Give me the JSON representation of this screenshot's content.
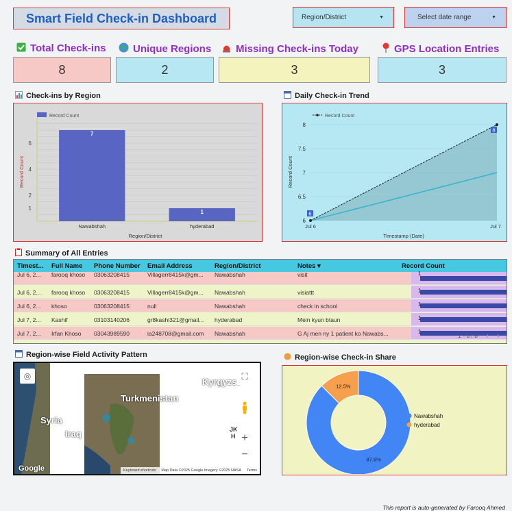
{
  "header": {
    "title": "Smart Field Check-in Dashboard",
    "region_filter": "Region/District",
    "date_filter": "Select date range"
  },
  "kpis": [
    {
      "label": "Total Check-ins",
      "icon": "checkbox-icon",
      "value": "8",
      "color": "#f6c8c6"
    },
    {
      "label": "Unique Regions",
      "icon": "globe-icon",
      "value": "2",
      "color": "#b6e7f2"
    },
    {
      "label": "Missing Check-ins Today",
      "icon": "siren-icon",
      "value": "3",
      "color": "#f4f2bd"
    },
    {
      "label": "GPS Location Entries",
      "icon": "pin-icon",
      "value": "3",
      "color": "#b6e7f2"
    }
  ],
  "sections": {
    "region_chart": "Check-ins by Region",
    "trend_chart": "Daily Check-in Trend",
    "summary": "Summary of All Entries",
    "map": "Region-wise Field Activity Pattern",
    "share": "Region-wise Check-in Share"
  },
  "chart_data": [
    {
      "type": "bar",
      "legend": "Record Count",
      "legend_position": "top-left",
      "categories": [
        "Nawabshah",
        "hyderabad"
      ],
      "values": [
        7,
        1
      ],
      "data_labels": [
        "7",
        "1"
      ],
      "xlabel": "Region/District",
      "ylabel": "Record Count",
      "yticks": [
        "1",
        "2",
        "4",
        "6"
      ],
      "ylim": [
        0,
        8
      ]
    },
    {
      "type": "area",
      "legend": "Record Count",
      "legend_position": "top-left",
      "categories": [
        "Jul 6",
        "Jul 7"
      ],
      "values": [
        6,
        8
      ],
      "trend": [
        6,
        7
      ],
      "data_labels": [
        "6",
        "8"
      ],
      "xlabel": "Timestamp (Date)",
      "ylabel": "Record Count",
      "yticks": [
        "6",
        "6.5",
        "7",
        "7.5",
        "8"
      ],
      "ylim": [
        6,
        8
      ]
    },
    {
      "type": "pie",
      "donut": true,
      "series": [
        {
          "name": "Nawabshah",
          "value": 87.5,
          "label": "87.5%",
          "color": "#4285f4"
        },
        {
          "name": "hyderabad",
          "value": 12.5,
          "label": "12.5%",
          "color": "#f6a04d"
        }
      ],
      "legend_position": "right"
    }
  ],
  "table": {
    "columns": [
      "Timest...",
      "Full Name",
      "Phone Number",
      "Email Address",
      "Region/District",
      "Notes ▾",
      "Record Count"
    ],
    "rows": [
      {
        "c": [
          "Jul 6, 2...",
          "farooq khoso",
          "03063208415",
          "Villagerr8415k@gm...",
          "Nawabshah",
          "visit",
          "1"
        ],
        "bg": "#f6c8c6"
      },
      {
        "c": [
          "Jul 6, 2...",
          "farooq khoso",
          "03063208415",
          "Villagerr8415k@gm...",
          "Nawabshah",
          "visiattt",
          "1"
        ],
        "bg": "#eef3c8"
      },
      {
        "c": [
          "Jul 6, 2...",
          "khoso",
          "03063208415",
          "null",
          "Nawabshah",
          "check in school",
          "1"
        ],
        "bg": "#f6c8c6"
      },
      {
        "c": [
          "Jul 7, 2...",
          "Kashif",
          "03103140206",
          "gr8kashi321@gmail...",
          "hyderabad",
          "Mein kyun btaun",
          "1"
        ],
        "bg": "#eef3c8"
      },
      {
        "c": [
          "Jul 7, 2...",
          "Irfan Khoso",
          "03043989590",
          "ia248708@gmail.com",
          "Nawabshah",
          "G Aj men ny 1 patient ko Nawabs...",
          "1"
        ],
        "bg": "#f6c8c6"
      }
    ],
    "pagination": "1 - 8 / 8"
  },
  "map": {
    "labels": [
      "Syria",
      "Iraq",
      "Turkmenistan",
      "Kyrgyzst",
      "JK",
      "H"
    ],
    "attribution": "Keyboard shortcuts",
    "map_data": "Map Data ©2025 Google Imagery ©2025 NASA",
    "terms": "Terms",
    "logo": "Google"
  },
  "footer": "This report is auto-generated by Farooq Ahmed"
}
